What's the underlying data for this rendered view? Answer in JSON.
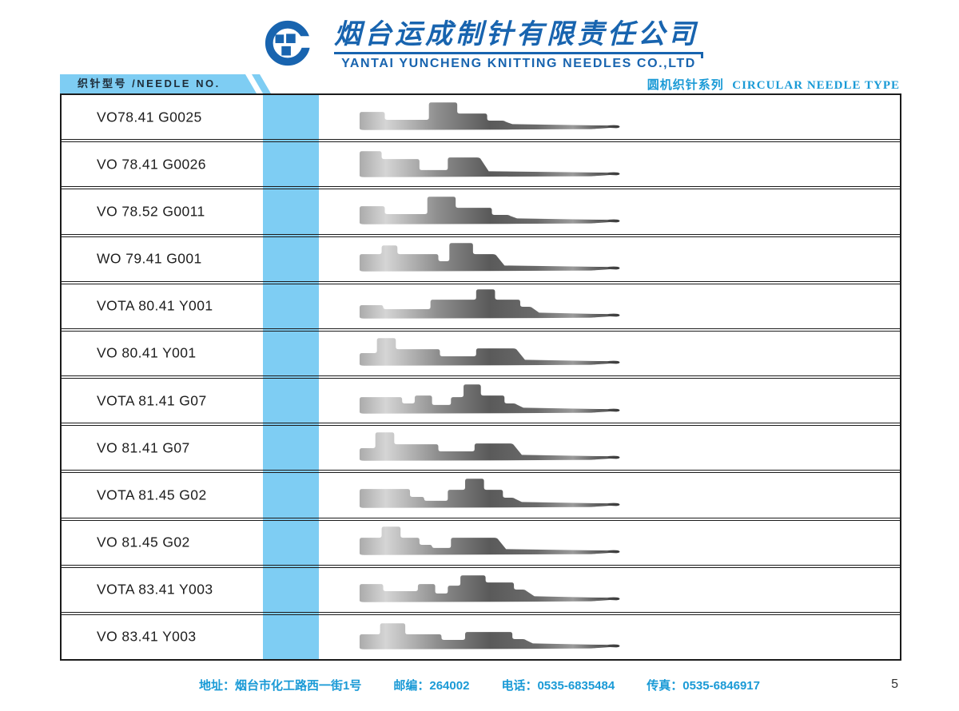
{
  "header": {
    "company_name_zh": "烟台运成制针有限责任公司",
    "company_name_en": "YANTAI YUNCHENG KNITTING NEEDLES CO.,LTD"
  },
  "band": {
    "left_label": "织针型号 /NEEDLE NO.",
    "right_label_zh": "圆机织针系列",
    "right_label_en": "CIRCULAR NEEDLE TYPE"
  },
  "table": {
    "rows": [
      {
        "model": "VO78.41 G0025",
        "illustration": "needle-profile-1"
      },
      {
        "model": "VO 78.41 G0026",
        "illustration": "needle-profile-2"
      },
      {
        "model": "VO 78.52 G0011",
        "illustration": "needle-profile-3"
      },
      {
        "model": "WO 79.41 G001",
        "illustration": "needle-profile-4"
      },
      {
        "model": "VOTA 80.41 Y001",
        "illustration": "needle-profile-5"
      },
      {
        "model": "VO 80.41 Y001",
        "illustration": "needle-profile-6"
      },
      {
        "model": "VOTA 81.41 G07",
        "illustration": "needle-profile-7"
      },
      {
        "model": "VO 81.41 G07",
        "illustration": "needle-profile-8"
      },
      {
        "model": "VOTA 81.45 G02",
        "illustration": "needle-profile-9"
      },
      {
        "model": "VO 81.45 G02",
        "illustration": "needle-profile-10"
      },
      {
        "model": "VOTA 83.41 Y003",
        "illustration": "needle-profile-11"
      },
      {
        "model": "VO 83.41 Y003",
        "illustration": "needle-profile-12"
      }
    ]
  },
  "footer": {
    "address_label": "地址：",
    "address_value": "烟台市化工路西一街1号",
    "zip_label": "邮编：",
    "zip_value": "264002",
    "phone_label": "电话：",
    "phone_value": "0535-6835484",
    "fax_label": "传真：",
    "fax_value": "0535-6846917",
    "page_number": "5"
  },
  "colors": {
    "brand_blue": "#1864af",
    "sky_blue": "#7ecdf3",
    "link_blue": "#1a9ad6",
    "needle_gray_dark": "#3a3a3a",
    "needle_gray_light": "#d5d5d5"
  }
}
